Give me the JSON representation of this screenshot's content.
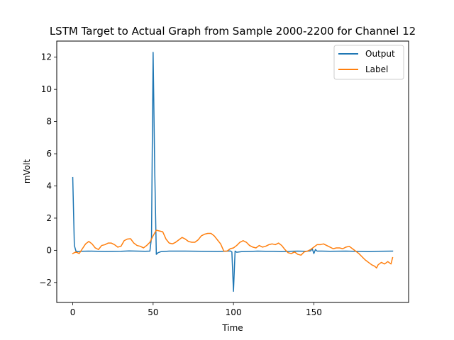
{
  "chart_data": {
    "type": "line",
    "title": "LSTM Target to Actual Graph from Sample 2000-2200 for Channel 12",
    "xlabel": "Time",
    "ylabel": "mVolt",
    "xlim": [
      -9.95,
      208.95
    ],
    "ylim": [
      -3.24,
      13.0
    ],
    "x_ticks": [
      0,
      50,
      100,
      150
    ],
    "y_ticks": [
      -2,
      0,
      2,
      4,
      6,
      8,
      10,
      12
    ],
    "y_tick_labels": [
      "−2",
      "0",
      "2",
      "4",
      "6",
      "8",
      "10",
      "12"
    ],
    "grid": false,
    "legend_position": "upper right",
    "series": [
      {
        "name": "Output",
        "color": "#1f77b4",
        "points": [
          [
            0,
            4.52
          ],
          [
            1,
            0.3
          ],
          [
            2,
            -0.05
          ],
          [
            3,
            -0.08
          ],
          [
            5,
            -0.06
          ],
          [
            10,
            -0.05
          ],
          [
            20,
            -0.07
          ],
          [
            30,
            -0.06
          ],
          [
            35,
            -0.04
          ],
          [
            40,
            -0.05
          ],
          [
            45,
            -0.06
          ],
          [
            48,
            -0.05
          ],
          [
            49,
            0.8
          ],
          [
            50,
            12.3
          ],
          [
            51,
            5.0
          ],
          [
            52,
            -0.25
          ],
          [
            53,
            -0.15
          ],
          [
            55,
            -0.08
          ],
          [
            60,
            -0.05
          ],
          [
            70,
            -0.05
          ],
          [
            80,
            -0.06
          ],
          [
            90,
            -0.07
          ],
          [
            95,
            -0.06
          ],
          [
            98,
            -0.04
          ],
          [
            99,
            -0.1
          ],
          [
            100,
            -2.55
          ],
          [
            101,
            -0.05
          ],
          [
            102,
            -0.12
          ],
          [
            105,
            -0.08
          ],
          [
            110,
            -0.07
          ],
          [
            115,
            -0.05
          ],
          [
            120,
            -0.06
          ],
          [
            125,
            -0.06
          ],
          [
            130,
            -0.08
          ],
          [
            135,
            -0.06
          ],
          [
            140,
            -0.05
          ],
          [
            145,
            -0.06
          ],
          [
            148,
            -0.04
          ],
          [
            149,
            0.1
          ],
          [
            150,
            -0.2
          ],
          [
            151,
            0.05
          ],
          [
            152,
            -0.05
          ],
          [
            155,
            -0.05
          ],
          [
            160,
            -0.06
          ],
          [
            170,
            -0.05
          ],
          [
            180,
            -0.07
          ],
          [
            185,
            -0.08
          ],
          [
            190,
            -0.06
          ],
          [
            199,
            -0.05
          ]
        ]
      },
      {
        "name": "Label",
        "color": "#ff7f0e",
        "points": [
          [
            0,
            -0.2
          ],
          [
            2,
            -0.1
          ],
          [
            4,
            -0.2
          ],
          [
            6,
            0.1
          ],
          [
            8,
            0.4
          ],
          [
            10,
            0.55
          ],
          [
            12,
            0.4
          ],
          [
            14,
            0.15
          ],
          [
            16,
            0.05
          ],
          [
            18,
            0.3
          ],
          [
            20,
            0.35
          ],
          [
            22,
            0.45
          ],
          [
            24,
            0.45
          ],
          [
            26,
            0.35
          ],
          [
            28,
            0.2
          ],
          [
            30,
            0.25
          ],
          [
            32,
            0.6
          ],
          [
            34,
            0.7
          ],
          [
            36,
            0.72
          ],
          [
            38,
            0.45
          ],
          [
            40,
            0.3
          ],
          [
            42,
            0.25
          ],
          [
            44,
            0.15
          ],
          [
            46,
            0.3
          ],
          [
            48,
            0.5
          ],
          [
            50,
            0.9
          ],
          [
            52,
            1.25
          ],
          [
            54,
            1.2
          ],
          [
            56,
            1.15
          ],
          [
            58,
            0.7
          ],
          [
            60,
            0.45
          ],
          [
            62,
            0.4
          ],
          [
            64,
            0.5
          ],
          [
            66,
            0.65
          ],
          [
            68,
            0.8
          ],
          [
            70,
            0.7
          ],
          [
            72,
            0.55
          ],
          [
            74,
            0.5
          ],
          [
            76,
            0.5
          ],
          [
            78,
            0.65
          ],
          [
            80,
            0.9
          ],
          [
            82,
            1.0
          ],
          [
            84,
            1.05
          ],
          [
            86,
            1.05
          ],
          [
            88,
            0.9
          ],
          [
            90,
            0.65
          ],
          [
            92,
            0.4
          ],
          [
            94,
            -0.05
          ],
          [
            96,
            -0.05
          ],
          [
            98,
            0.1
          ],
          [
            100,
            0.15
          ],
          [
            102,
            0.3
          ],
          [
            104,
            0.5
          ],
          [
            106,
            0.6
          ],
          [
            108,
            0.5
          ],
          [
            110,
            0.3
          ],
          [
            112,
            0.2
          ],
          [
            114,
            0.15
          ],
          [
            116,
            0.3
          ],
          [
            118,
            0.2
          ],
          [
            120,
            0.25
          ],
          [
            122,
            0.35
          ],
          [
            124,
            0.4
          ],
          [
            126,
            0.35
          ],
          [
            128,
            0.45
          ],
          [
            130,
            0.3
          ],
          [
            132,
            0.05
          ],
          [
            134,
            -0.15
          ],
          [
            136,
            -0.2
          ],
          [
            138,
            -0.1
          ],
          [
            140,
            -0.25
          ],
          [
            142,
            -0.3
          ],
          [
            144,
            -0.1
          ],
          [
            146,
            -0.05
          ],
          [
            148,
            0.05
          ],
          [
            150,
            0.2
          ],
          [
            152,
            0.35
          ],
          [
            154,
            0.35
          ],
          [
            156,
            0.4
          ],
          [
            158,
            0.3
          ],
          [
            160,
            0.2
          ],
          [
            162,
            0.1
          ],
          [
            164,
            0.15
          ],
          [
            166,
            0.15
          ],
          [
            168,
            0.1
          ],
          [
            170,
            0.2
          ],
          [
            172,
            0.25
          ],
          [
            174,
            0.1
          ],
          [
            176,
            -0.05
          ],
          [
            178,
            -0.2
          ],
          [
            180,
            -0.4
          ],
          [
            182,
            -0.6
          ],
          [
            184,
            -0.75
          ],
          [
            186,
            -0.9
          ],
          [
            188,
            -1.0
          ],
          [
            189,
            -1.1
          ],
          [
            190,
            -0.9
          ],
          [
            192,
            -0.75
          ],
          [
            194,
            -0.85
          ],
          [
            196,
            -0.7
          ],
          [
            198,
            -0.85
          ],
          [
            199,
            -0.45
          ]
        ]
      }
    ]
  }
}
